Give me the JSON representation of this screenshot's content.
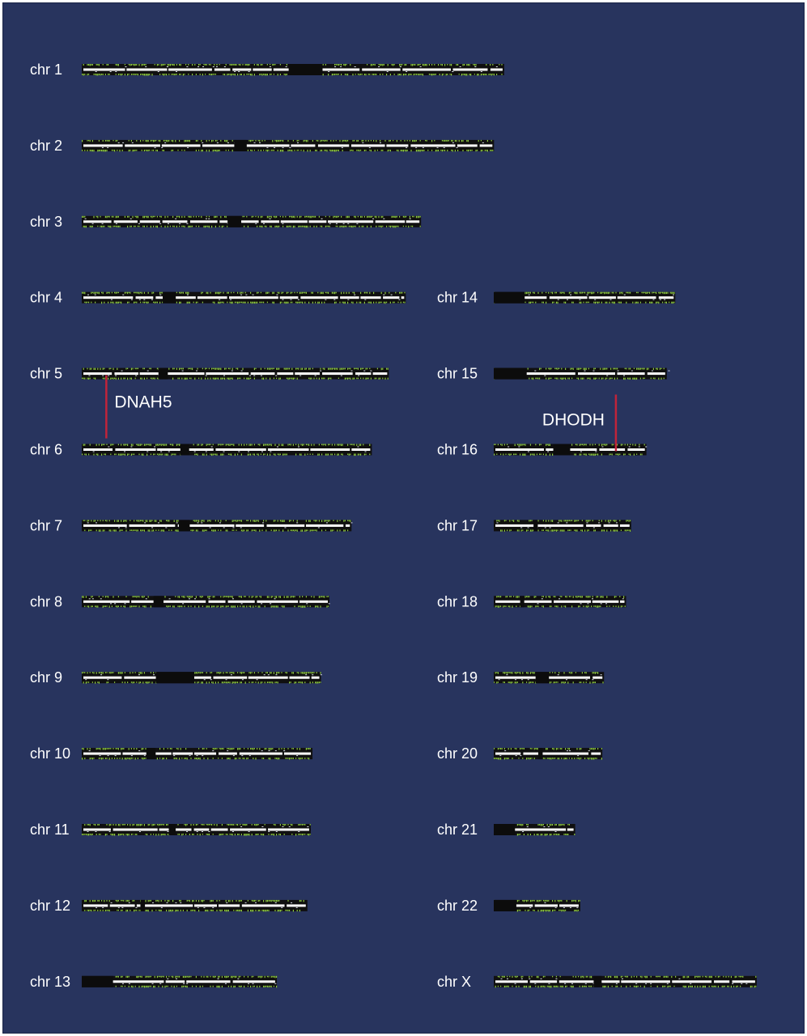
{
  "chromosomes": [
    {
      "label": "chr 1",
      "length": 249,
      "centromere": [
        0.49,
        0.57
      ]
    },
    {
      "label": "chr 2",
      "length": 243,
      "centromere": [
        0.37,
        0.4
      ]
    },
    {
      "label": "chr 3",
      "length": 200,
      "centromere": [
        0.43,
        0.47
      ]
    },
    {
      "label": "chr 4",
      "length": 191,
      "centromere": [
        0.25,
        0.29
      ]
    },
    {
      "label": "chr 5",
      "length": 181,
      "centromere": [
        0.25,
        0.28
      ]
    },
    {
      "label": "chr 6",
      "length": 171,
      "centromere": [
        0.34,
        0.37
      ]
    },
    {
      "label": "chr 7",
      "length": 159,
      "centromere": [
        0.36,
        0.4
      ]
    },
    {
      "label": "chr 8",
      "length": 146,
      "centromere": [
        0.29,
        0.33
      ]
    },
    {
      "label": "chr 9",
      "length": 141,
      "centromere": [
        0.31,
        0.47
      ]
    },
    {
      "label": "chr 10",
      "length": 136,
      "centromere": [
        0.28,
        0.32
      ]
    },
    {
      "label": "chr 11",
      "length": 135,
      "centromere": [
        0.38,
        0.41
      ]
    },
    {
      "label": "chr 12",
      "length": 133,
      "centromere": [
        0.26,
        0.28
      ]
    },
    {
      "label": "chr 13",
      "length": 115,
      "centromere": [
        0.0,
        0.16
      ]
    },
    {
      "label": "chr 14",
      "length": 107,
      "centromere": [
        0.0,
        0.17
      ]
    },
    {
      "label": "chr 15",
      "length": 102,
      "centromere": [
        0.0,
        0.19
      ]
    },
    {
      "label": "chr 16",
      "length": 90,
      "centromere": [
        0.39,
        0.5
      ]
    },
    {
      "label": "chr 17",
      "length": 81,
      "centromere": [
        0.29,
        0.32
      ]
    },
    {
      "label": "chr 18",
      "length": 78,
      "centromere": [
        0.2,
        0.23
      ]
    },
    {
      "label": "chr 19",
      "length": 65,
      "centromere": [
        0.38,
        0.5
      ]
    },
    {
      "label": "chr 20",
      "length": 64,
      "centromere": [
        0.41,
        0.45
      ]
    },
    {
      "label": "chr 21",
      "length": 48,
      "centromere": [
        0.0,
        0.26
      ]
    },
    {
      "label": "chr 22",
      "length": 51,
      "centromere": [
        0.0,
        0.26
      ]
    },
    {
      "label": "chr X",
      "length": 155,
      "centromere": [
        0.38,
        0.41
      ]
    }
  ],
  "annotations": [
    {
      "gene": "DNAH5",
      "chromosome": "chr 5",
      "position": 0.08,
      "color": "#c0243a"
    },
    {
      "gene": "DHODH",
      "chromosome": "chr 16",
      "position": 0.8,
      "color": "#c0243a"
    }
  ],
  "colors": {
    "background": "#28345e",
    "chromosome_body": "#101010",
    "coverage_line": "#ffffff",
    "variant_marks": "#8cc63f",
    "label_text": "#ffffff"
  }
}
